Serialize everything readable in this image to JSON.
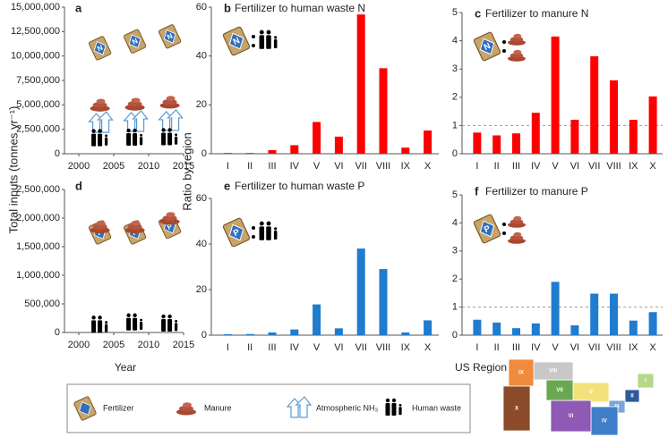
{
  "chart_data": [
    {
      "type": "scatter",
      "panel": "a",
      "icon_label": "N",
      "ylabel": "Total inputs (tonnes yr⁻¹)",
      "x": [
        2002,
        2007,
        2012
      ],
      "xlim": [
        2000,
        2015
      ],
      "xticks": [
        2000,
        2005,
        2010,
        2015
      ],
      "ylim": [
        0,
        15000000
      ],
      "yticks": [
        0,
        {
          "value": 2500000,
          "label": "2,500,000"
        },
        {
          "value": 5000000,
          "label": "5,000,000"
        },
        {
          "value": 7500000,
          "label": "7,500,000"
        },
        {
          "value": 10000000,
          "label": "10,000,000"
        },
        {
          "value": 12500000,
          "label": "12,500,000"
        },
        {
          "value": 15000000,
          "label": "15,000,000"
        }
      ],
      "series": [
        {
          "name": "Fertilizer",
          "color": "#c8a46a",
          "values": [
            10800000,
            11500000,
            12000000
          ]
        },
        {
          "name": "Manure",
          "color": "#b5533c",
          "values": [
            5000000,
            5100000,
            5300000
          ]
        },
        {
          "name": "Atmospheric NH₃",
          "color": "#5b9bd5",
          "values": [
            3100000,
            3200000,
            3300000
          ]
        },
        {
          "name": "Human waste",
          "color": "#000000",
          "values": [
            1500000,
            1550000,
            1600000
          ]
        }
      ]
    },
    {
      "type": "bar",
      "panel": "b",
      "title": "Fertilizer to human waste N",
      "icon_label": "N",
      "ylabel": "Ratio by region",
      "categories": [
        "I",
        "II",
        "III",
        "IV",
        "V",
        "VI",
        "VII",
        "VIII",
        "IX",
        "X"
      ],
      "values": [
        0.3,
        0.3,
        1.5,
        3.5,
        13,
        7,
        57,
        35,
        2.5,
        9.5
      ],
      "color": "#ff0000",
      "ylim": [
        0,
        60
      ],
      "yticks": [
        0,
        20,
        40,
        60
      ]
    },
    {
      "type": "bar",
      "panel": "c",
      "title": "Fertilizer to manure N",
      "icon_label": "N",
      "categories": [
        "I",
        "II",
        "III",
        "IV",
        "V",
        "VI",
        "VII",
        "VIII",
        "IX",
        "X"
      ],
      "values": [
        0.75,
        0.65,
        0.72,
        1.45,
        4.15,
        1.2,
        3.45,
        2.6,
        1.2,
        2.03
      ],
      "color": "#ff0000",
      "ylim": [
        0,
        5
      ],
      "yticks": [
        0,
        1,
        2,
        3,
        4,
        5
      ],
      "refline": 1
    },
    {
      "type": "scatter",
      "panel": "d",
      "icon_label": "P",
      "xlabel": "Year",
      "x": [
        2002,
        2007,
        2012
      ],
      "xlim": [
        2000,
        2015
      ],
      "xticks": [
        2000,
        2005,
        2010,
        2015
      ],
      "ylim": [
        0,
        2500000
      ],
      "yticks": [
        0,
        {
          "value": 500000,
          "label": "500,000"
        },
        {
          "value": 1000000,
          "label": "1,000,000"
        },
        {
          "value": 1500000,
          "label": "1,500,000"
        },
        {
          "value": 2000000,
          "label": "2,000,000"
        },
        {
          "value": 2500000,
          "label": "2,500,000"
        }
      ],
      "series": [
        {
          "color": "#c8a46a",
          "values": [
            1750000,
            1750000,
            1850000
          ]
        },
        {
          "color": "#b5533c",
          "values": [
            1850000,
            1850000,
            2000000
          ]
        },
        {
          "color": "#000000",
          "values": [
            120000,
            160000,
            140000
          ]
        }
      ]
    },
    {
      "type": "bar",
      "panel": "e",
      "title": "Fertilizer to human waste P",
      "icon_label": "P",
      "categories": [
        "I",
        "II",
        "III",
        "IV",
        "V",
        "VI",
        "VII",
        "VIII",
        "IX",
        "X"
      ],
      "values": [
        0.4,
        0.5,
        1.2,
        2.5,
        13.5,
        3,
        38,
        29,
        1.2,
        6.5
      ],
      "color": "#1f7ccf",
      "ylim": [
        0,
        60
      ],
      "yticks": [
        0,
        20,
        40,
        60
      ]
    },
    {
      "type": "bar",
      "panel": "f",
      "title": "Fertilizer to manure P",
      "icon_label": "P",
      "xlabel": "US Region",
      "categories": [
        "I",
        "II",
        "III",
        "IV",
        "V",
        "VI",
        "VII",
        "VIII",
        "IX",
        "X"
      ],
      "values": [
        0.55,
        0.45,
        0.25,
        0.42,
        1.9,
        0.35,
        1.48,
        1.48,
        0.52,
        0.82
      ],
      "color": "#1f7ccf",
      "ylim": [
        0,
        5
      ],
      "yticks": [
        0,
        1,
        2,
        3,
        4,
        5
      ],
      "refline": 1
    }
  ],
  "map": {
    "regions": [
      "I",
      "II",
      "III",
      "IV",
      "V",
      "VI",
      "VII",
      "VIII",
      "IX",
      "X"
    ]
  }
}
